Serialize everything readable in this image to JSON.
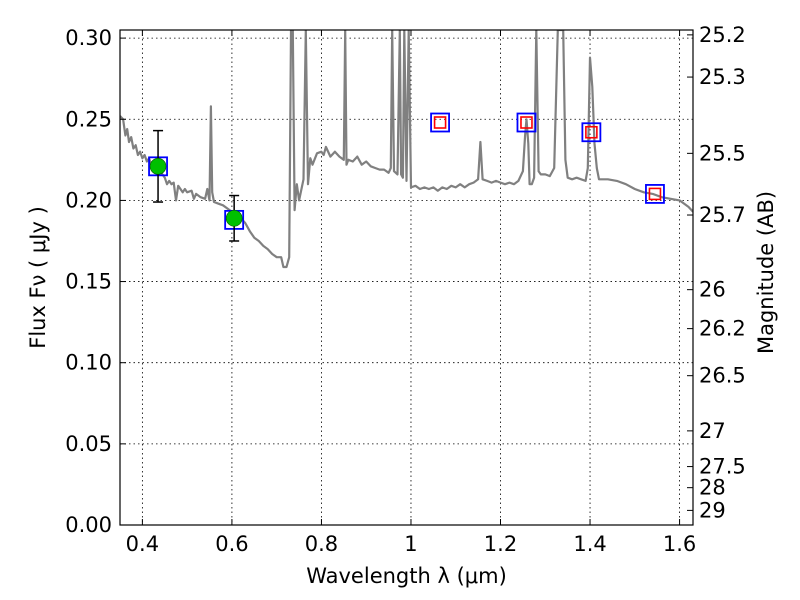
{
  "chart_data": {
    "type": "line",
    "title": "",
    "xlabel": "Wavelength  λ (μm)",
    "ylabel": "Flux  Fν  ( μJy )",
    "y2label": "Magnitude (AB)",
    "xlim": [
      0.35,
      1.63
    ],
    "ylim": [
      0.0,
      0.305
    ],
    "grid": true,
    "x_ticks": [
      0.4,
      0.6,
      0.8,
      1.0,
      1.2,
      1.4,
      1.6
    ],
    "x_tick_labels": [
      "0.4",
      "0.6",
      "0.8",
      "1",
      "1.2",
      "1.4",
      "1.6"
    ],
    "y_ticks": [
      0.0,
      0.05,
      0.1,
      0.15,
      0.2,
      0.25,
      0.3
    ],
    "y_tick_labels": [
      "0.00",
      "0.05",
      "0.10",
      "0.15",
      "0.20",
      "0.25",
      "0.30"
    ],
    "y2_ticks": [
      {
        "label": "25.2",
        "flux": 0.302
      },
      {
        "label": "25.3",
        "flux": 0.276
      },
      {
        "label": "25.5",
        "flux": 0.229
      },
      {
        "label": "25.7",
        "flux": 0.191
      },
      {
        "label": "26",
        "flux": 0.145
      },
      {
        "label": "26.2",
        "flux": 0.121
      },
      {
        "label": "26.5",
        "flux": 0.092
      },
      {
        "label": "27",
        "flux": 0.058
      },
      {
        "label": "27.5",
        "flux": 0.036
      },
      {
        "label": "28",
        "flux": 0.023
      },
      {
        "label": "29",
        "flux": 0.009
      }
    ],
    "series": [
      {
        "type": "line",
        "color": "#808080",
        "points": [
          [
            0.35,
            0.252
          ],
          [
            0.357,
            0.25
          ],
          [
            0.362,
            0.24
          ],
          [
            0.366,
            0.244
          ],
          [
            0.37,
            0.236
          ],
          [
            0.375,
            0.239
          ],
          [
            0.38,
            0.232
          ],
          [
            0.385,
            0.234
          ],
          [
            0.39,
            0.228
          ],
          [
            0.395,
            0.23
          ],
          [
            0.4,
            0.226
          ],
          [
            0.405,
            0.228
          ],
          [
            0.41,
            0.224
          ],
          [
            0.415,
            0.226
          ],
          [
            0.42,
            0.222
          ],
          [
            0.425,
            0.224
          ],
          [
            0.43,
            0.221
          ],
          [
            0.44,
            0.218
          ],
          [
            0.45,
            0.214
          ],
          [
            0.455,
            0.21
          ],
          [
            0.46,
            0.212
          ],
          [
            0.465,
            0.21
          ],
          [
            0.47,
            0.211
          ],
          [
            0.475,
            0.2
          ],
          [
            0.48,
            0.209
          ],
          [
            0.49,
            0.205
          ],
          [
            0.495,
            0.207
          ],
          [
            0.5,
            0.205
          ],
          [
            0.51,
            0.206
          ],
          [
            0.515,
            0.201
          ],
          [
            0.52,
            0.204
          ],
          [
            0.53,
            0.202
          ],
          [
            0.54,
            0.201
          ],
          [
            0.545,
            0.207
          ],
          [
            0.55,
            0.2
          ],
          [
            0.553,
            0.258
          ],
          [
            0.556,
            0.205
          ],
          [
            0.56,
            0.199
          ],
          [
            0.57,
            0.198
          ],
          [
            0.58,
            0.197
          ],
          [
            0.59,
            0.195
          ],
          [
            0.6,
            0.193
          ],
          [
            0.61,
            0.191
          ],
          [
            0.62,
            0.189
          ],
          [
            0.63,
            0.186
          ],
          [
            0.64,
            0.181
          ],
          [
            0.65,
            0.177
          ],
          [
            0.66,
            0.175
          ],
          [
            0.67,
            0.172
          ],
          [
            0.68,
            0.17
          ],
          [
            0.69,
            0.167
          ],
          [
            0.7,
            0.165
          ],
          [
            0.71,
            0.165
          ],
          [
            0.715,
            0.159
          ],
          [
            0.722,
            0.159
          ],
          [
            0.728,
            0.165
          ],
          [
            0.732,
            0.305
          ],
          [
            0.736,
            0.305
          ],
          [
            0.74,
            0.194
          ],
          [
            0.745,
            0.21
          ],
          [
            0.75,
            0.2
          ],
          [
            0.76,
            0.213
          ],
          [
            0.765,
            0.305
          ],
          [
            0.77,
            0.21
          ],
          [
            0.775,
            0.226
          ],
          [
            0.78,
            0.222
          ],
          [
            0.79,
            0.229
          ],
          [
            0.8,
            0.23
          ],
          [
            0.805,
            0.228
          ],
          [
            0.81,
            0.233
          ],
          [
            0.82,
            0.227
          ],
          [
            0.83,
            0.23
          ],
          [
            0.84,
            0.227
          ],
          [
            0.85,
            0.225
          ],
          [
            0.853,
            0.305
          ],
          [
            0.856,
            0.222
          ],
          [
            0.86,
            0.225
          ],
          [
            0.87,
            0.224
          ],
          [
            0.88,
            0.227
          ],
          [
            0.89,
            0.222
          ],
          [
            0.9,
            0.224
          ],
          [
            0.91,
            0.221
          ],
          [
            0.92,
            0.22
          ],
          [
            0.93,
            0.219
          ],
          [
            0.94,
            0.219
          ],
          [
            0.95,
            0.217
          ],
          [
            0.955,
            0.22
          ],
          [
            0.958,
            0.305
          ],
          [
            0.962,
            0.218
          ],
          [
            0.97,
            0.216
          ],
          [
            0.975,
            0.305
          ],
          [
            0.978,
            0.216
          ],
          [
            0.982,
            0.214
          ],
          [
            0.985,
            0.305
          ],
          [
            0.99,
            0.212
          ],
          [
            0.995,
            0.305
          ],
          [
            1.0,
            0.208
          ],
          [
            1.01,
            0.209
          ],
          [
            1.02,
            0.207
          ],
          [
            1.03,
            0.208
          ],
          [
            1.04,
            0.207
          ],
          [
            1.05,
            0.208
          ],
          [
            1.06,
            0.206
          ],
          [
            1.07,
            0.208
          ],
          [
            1.08,
            0.207
          ],
          [
            1.09,
            0.209
          ],
          [
            1.1,
            0.208
          ],
          [
            1.11,
            0.21
          ],
          [
            1.12,
            0.208
          ],
          [
            1.13,
            0.21
          ],
          [
            1.14,
            0.211
          ],
          [
            1.15,
            0.213
          ],
          [
            1.155,
            0.236
          ],
          [
            1.16,
            0.213
          ],
          [
            1.17,
            0.212
          ],
          [
            1.18,
            0.211
          ],
          [
            1.19,
            0.212
          ],
          [
            1.2,
            0.211
          ],
          [
            1.21,
            0.21
          ],
          [
            1.22,
            0.211
          ],
          [
            1.23,
            0.21
          ],
          [
            1.24,
            0.212
          ],
          [
            1.25,
            0.218
          ],
          [
            1.255,
            0.24
          ],
          [
            1.258,
            0.25
          ],
          [
            1.262,
            0.235
          ],
          [
            1.265,
            0.21
          ],
          [
            1.27,
            0.21
          ],
          [
            1.275,
            0.214
          ],
          [
            1.28,
            0.305
          ],
          [
            1.285,
            0.218
          ],
          [
            1.29,
            0.216
          ],
          [
            1.3,
            0.216
          ],
          [
            1.31,
            0.215
          ],
          [
            1.32,
            0.22
          ],
          [
            1.328,
            0.305
          ],
          [
            1.34,
            0.305
          ],
          [
            1.345,
            0.225
          ],
          [
            1.35,
            0.214
          ],
          [
            1.36,
            0.213
          ],
          [
            1.37,
            0.214
          ],
          [
            1.38,
            0.213
          ],
          [
            1.39,
            0.212
          ],
          [
            1.395,
            0.22
          ],
          [
            1.4,
            0.288
          ],
          [
            1.405,
            0.27
          ],
          [
            1.41,
            0.235
          ],
          [
            1.415,
            0.22
          ],
          [
            1.42,
            0.213
          ],
          [
            1.44,
            0.213
          ],
          [
            1.46,
            0.212
          ],
          [
            1.48,
            0.21
          ],
          [
            1.5,
            0.207
          ],
          [
            1.52,
            0.205
          ],
          [
            1.54,
            0.204
          ],
          [
            1.56,
            0.202
          ],
          [
            1.58,
            0.201
          ],
          [
            1.6,
            0.2
          ],
          [
            1.62,
            0.196
          ],
          [
            1.63,
            0.193
          ]
        ]
      },
      {
        "type": "blue-square-markers",
        "color": "#0000ff",
        "points": [
          [
            0.435,
            0.221
          ],
          [
            0.605,
            0.188
          ],
          [
            1.065,
            0.248
          ],
          [
            1.258,
            0.248
          ],
          [
            1.403,
            0.242
          ],
          [
            1.545,
            0.204
          ]
        ]
      },
      {
        "type": "red-square-markers",
        "color": "#ff0000",
        "points": [
          [
            1.065,
            0.248
          ],
          [
            1.258,
            0.248
          ],
          [
            1.403,
            0.242
          ],
          [
            1.545,
            0.204
          ]
        ]
      },
      {
        "type": "green-points-with-errorbars",
        "color": "#00c000",
        "points": [
          {
            "x": 0.435,
            "y": 0.221,
            "err": 0.022
          },
          {
            "x": 0.605,
            "y": 0.189,
            "err": 0.014
          }
        ]
      }
    ]
  }
}
